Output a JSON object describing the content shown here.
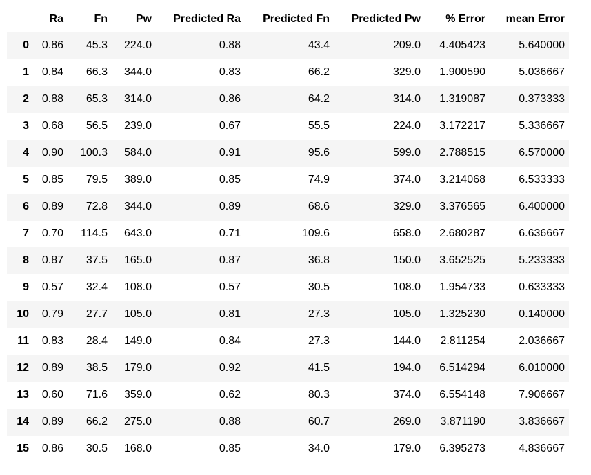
{
  "table": {
    "index_header": "",
    "columns": [
      "Ra",
      "Fn",
      "Pw",
      "Predicted Ra",
      "Predicted Fn",
      "Predicted Pw",
      "% Error",
      "mean Error"
    ],
    "rows": [
      {
        "index": "0",
        "cells": [
          "0.86",
          "45.3",
          "224.0",
          "0.88",
          "43.4",
          "209.0",
          "4.405423",
          "5.640000"
        ]
      },
      {
        "index": "1",
        "cells": [
          "0.84",
          "66.3",
          "344.0",
          "0.83",
          "66.2",
          "329.0",
          "1.900590",
          "5.036667"
        ]
      },
      {
        "index": "2",
        "cells": [
          "0.88",
          "65.3",
          "314.0",
          "0.86",
          "64.2",
          "314.0",
          "1.319087",
          "0.373333"
        ]
      },
      {
        "index": "3",
        "cells": [
          "0.68",
          "56.5",
          "239.0",
          "0.67",
          "55.5",
          "224.0",
          "3.172217",
          "5.336667"
        ]
      },
      {
        "index": "4",
        "cells": [
          "0.90",
          "100.3",
          "584.0",
          "0.91",
          "95.6",
          "599.0",
          "2.788515",
          "6.570000"
        ]
      },
      {
        "index": "5",
        "cells": [
          "0.85",
          "79.5",
          "389.0",
          "0.85",
          "74.9",
          "374.0",
          "3.214068",
          "6.533333"
        ]
      },
      {
        "index": "6",
        "cells": [
          "0.89",
          "72.8",
          "344.0",
          "0.89",
          "68.6",
          "329.0",
          "3.376565",
          "6.400000"
        ]
      },
      {
        "index": "7",
        "cells": [
          "0.70",
          "114.5",
          "643.0",
          "0.71",
          "109.6",
          "658.0",
          "2.680287",
          "6.636667"
        ]
      },
      {
        "index": "8",
        "cells": [
          "0.87",
          "37.5",
          "165.0",
          "0.87",
          "36.8",
          "150.0",
          "3.652525",
          "5.233333"
        ]
      },
      {
        "index": "9",
        "cells": [
          "0.57",
          "32.4",
          "108.0",
          "0.57",
          "30.5",
          "108.0",
          "1.954733",
          "0.633333"
        ]
      },
      {
        "index": "10",
        "cells": [
          "0.79",
          "27.7",
          "105.0",
          "0.81",
          "27.3",
          "105.0",
          "1.325230",
          "0.140000"
        ]
      },
      {
        "index": "11",
        "cells": [
          "0.83",
          "28.4",
          "149.0",
          "0.84",
          "27.3",
          "144.0",
          "2.811254",
          "2.036667"
        ]
      },
      {
        "index": "12",
        "cells": [
          "0.89",
          "38.5",
          "179.0",
          "0.92",
          "41.5",
          "194.0",
          "6.514294",
          "6.010000"
        ]
      },
      {
        "index": "13",
        "cells": [
          "0.60",
          "71.6",
          "359.0",
          "0.62",
          "80.3",
          "374.0",
          "6.554148",
          "7.906667"
        ]
      },
      {
        "index": "14",
        "cells": [
          "0.89",
          "66.2",
          "275.0",
          "0.88",
          "60.7",
          "269.0",
          "3.871190",
          "3.836667"
        ]
      },
      {
        "index": "15",
        "cells": [
          "0.86",
          "30.5",
          "168.0",
          "0.85",
          "34.0",
          "179.0",
          "6.395273",
          "4.836667"
        ]
      }
    ]
  }
}
